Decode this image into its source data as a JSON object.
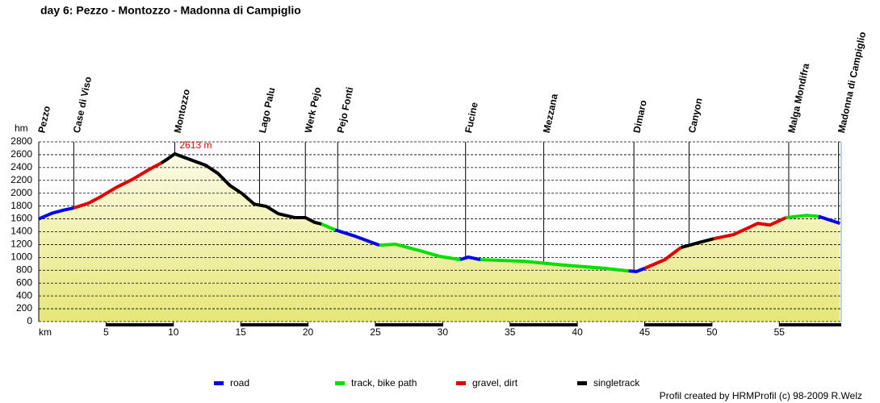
{
  "chart_data": {
    "type": "line",
    "title": "day 6: Pezzo - Montozzo - Madonna di Campiglio",
    "y_unit": "hm",
    "x_label": "km",
    "xlim": [
      0,
      59.6
    ],
    "ylim": [
      0,
      2800
    ],
    "yticks": [
      0,
      200,
      400,
      600,
      800,
      1000,
      1200,
      1400,
      1600,
      1800,
      2000,
      2200,
      2400,
      2600,
      2800
    ],
    "xticks": [
      5,
      10,
      15,
      20,
      25,
      30,
      35,
      40,
      45,
      50,
      55
    ],
    "grid": true,
    "x": [
      0,
      1.0,
      1.9,
      2.6,
      3.7,
      4.6,
      5.8,
      7.0,
      8.2,
      9.1,
      9.4,
      10.1,
      10.9,
      12.4,
      13.3,
      14.2,
      15.1,
      16.0,
      16.9,
      17.8,
      19.0,
      19.8,
      20.5,
      21.0,
      22.0,
      23.5,
      25.3,
      26.5,
      28.3,
      29.8,
      31.3,
      31.9,
      32.8,
      36.0,
      39.0,
      42.0,
      43.8,
      44.4,
      45.0,
      46.5,
      47.7,
      49.2,
      50.1,
      51.6,
      53.4,
      54.3,
      55.5,
      57.0,
      57.9,
      59.5
    ],
    "series": [
      {
        "name": "road",
        "color": "#0000ee",
        "values": [
          1600,
          1690,
          1740,
          1770,
          null,
          null,
          null,
          null,
          null,
          null,
          null,
          null,
          null,
          null,
          null,
          null,
          null,
          null,
          null,
          null,
          null,
          null,
          null,
          null,
          1430,
          1330,
          1190,
          null,
          null,
          null,
          965,
          1005,
          965,
          null,
          null,
          null,
          790,
          780,
          830,
          null,
          null,
          null,
          null,
          null,
          null,
          null,
          null,
          null,
          1640,
          1530
        ]
      },
      {
        "name": "track, bike path",
        "color": "#00e000",
        "values": [
          null,
          null,
          null,
          null,
          null,
          null,
          null,
          null,
          null,
          null,
          null,
          null,
          null,
          null,
          null,
          null,
          null,
          null,
          null,
          null,
          null,
          null,
          null,
          1520,
          1430,
          null,
          1190,
          1205,
          1105,
          1015,
          965,
          null,
          965,
          940,
          880,
          830,
          790,
          null,
          null,
          null,
          null,
          null,
          null,
          null,
          null,
          null,
          1620,
          1655,
          1640,
          null
        ]
      },
      {
        "name": "gravel, dirt",
        "color": "#e00000",
        "values": [
          null,
          null,
          null,
          1770,
          1845,
          1945,
          2095,
          2220,
          2370,
          2470,
          null,
          null,
          null,
          null,
          null,
          null,
          null,
          null,
          null,
          null,
          null,
          null,
          null,
          null,
          null,
          null,
          null,
          null,
          null,
          null,
          null,
          null,
          null,
          null,
          null,
          null,
          null,
          null,
          830,
          965,
          1155,
          null,
          1290,
          1355,
          1530,
          1505,
          1620,
          null,
          null,
          null
        ]
      },
      {
        "name": "singletrack",
        "color": "#000000",
        "values": [
          null,
          null,
          null,
          null,
          null,
          null,
          null,
          null,
          null,
          2470,
          2510,
          2613,
          2550,
          2435,
          2310,
          2120,
          1995,
          1830,
          1795,
          1680,
          1620,
          1620,
          1545,
          1520,
          null,
          null,
          null,
          null,
          null,
          null,
          null,
          null,
          null,
          null,
          null,
          null,
          null,
          null,
          null,
          null,
          1155,
          1240,
          1290,
          null,
          null,
          null,
          null,
          null,
          null,
          null
        ]
      }
    ],
    "waypoints": {
      "names": [
        "Pezzo",
        "Case di Viso",
        "Montozzo",
        "Lago Palu",
        "Werk Pejo",
        "Pejo Fonti",
        "Fucine",
        "Mezzana",
        "Dimaro",
        "Canyon",
        "Malga Mondifra",
        "Madonna di Campiglio"
      ],
      "km": [
        0,
        2.6,
        10.1,
        16.4,
        19.8,
        22.2,
        31.7,
        37.5,
        44.2,
        48.3,
        55.7,
        59.4
      ]
    },
    "annotations": [
      {
        "text": "2613 m",
        "x": 10.1,
        "y": 2613
      }
    ],
    "credit": "Profil created by HRMProfil (c) 98-2009 R.Welz"
  }
}
